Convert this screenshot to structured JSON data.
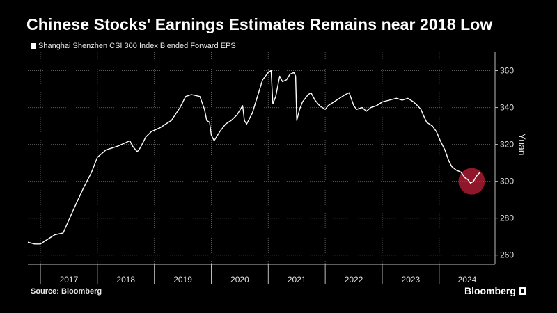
{
  "chart_data": {
    "type": "line",
    "title": "Chinese Stocks' Earnings Estimates Remains near 2018 Low",
    "series": [
      {
        "name": "Shanghai Shenzhen CSI 300 Index Blended Forward EPS",
        "points": [
          [
            2016.78,
            267
          ],
          [
            2016.9,
            266
          ],
          [
            2017.0,
            266
          ],
          [
            2017.1,
            268
          ],
          [
            2017.25,
            271
          ],
          [
            2017.4,
            272
          ],
          [
            2017.5,
            279
          ],
          [
            2017.6,
            286
          ],
          [
            2017.75,
            296
          ],
          [
            2017.9,
            305
          ],
          [
            2018.0,
            313
          ],
          [
            2018.15,
            317
          ],
          [
            2018.35,
            319
          ],
          [
            2018.5,
            321
          ],
          [
            2018.57,
            322
          ],
          [
            2018.62,
            319
          ],
          [
            2018.7,
            316
          ],
          [
            2018.75,
            318
          ],
          [
            2018.85,
            324
          ],
          [
            2018.95,
            327
          ],
          [
            2019.1,
            329
          ],
          [
            2019.2,
            331
          ],
          [
            2019.3,
            333
          ],
          [
            2019.45,
            340
          ],
          [
            2019.55,
            346
          ],
          [
            2019.65,
            347
          ],
          [
            2019.8,
            346
          ],
          [
            2019.88,
            339
          ],
          [
            2019.92,
            333
          ],
          [
            2019.97,
            332
          ],
          [
            2020.0,
            325
          ],
          [
            2020.05,
            322
          ],
          [
            2020.15,
            327
          ],
          [
            2020.25,
            331
          ],
          [
            2020.35,
            333
          ],
          [
            2020.45,
            336
          ],
          [
            2020.55,
            341
          ],
          [
            2020.58,
            333
          ],
          [
            2020.62,
            331
          ],
          [
            2020.72,
            337
          ],
          [
            2020.82,
            347
          ],
          [
            2020.9,
            355
          ],
          [
            2021.0,
            359
          ],
          [
            2021.05,
            360
          ],
          [
            2021.08,
            342
          ],
          [
            2021.13,
            346
          ],
          [
            2021.2,
            357
          ],
          [
            2021.25,
            354
          ],
          [
            2021.32,
            355
          ],
          [
            2021.38,
            358
          ],
          [
            2021.45,
            359
          ],
          [
            2021.48,
            357
          ],
          [
            2021.5,
            333
          ],
          [
            2021.55,
            339
          ],
          [
            2021.6,
            343
          ],
          [
            2021.7,
            347
          ],
          [
            2021.75,
            348
          ],
          [
            2021.82,
            344
          ],
          [
            2021.9,
            341
          ],
          [
            2022.0,
            339
          ],
          [
            2022.05,
            341
          ],
          [
            2022.15,
            343
          ],
          [
            2022.25,
            345
          ],
          [
            2022.35,
            347
          ],
          [
            2022.42,
            348
          ],
          [
            2022.5,
            341
          ],
          [
            2022.55,
            339
          ],
          [
            2022.65,
            340
          ],
          [
            2022.72,
            338
          ],
          [
            2022.8,
            340
          ],
          [
            2022.9,
            341
          ],
          [
            2023.0,
            343
          ],
          [
            2023.12,
            344
          ],
          [
            2023.25,
            345
          ],
          [
            2023.35,
            344
          ],
          [
            2023.45,
            345
          ],
          [
            2023.55,
            343
          ],
          [
            2023.62,
            341
          ],
          [
            2023.68,
            339
          ],
          [
            2023.72,
            336
          ],
          [
            2023.78,
            332
          ],
          [
            2023.88,
            330
          ],
          [
            2023.95,
            327
          ],
          [
            2024.02,
            322
          ],
          [
            2024.1,
            317
          ],
          [
            2024.17,
            311
          ],
          [
            2024.22,
            308
          ],
          [
            2024.3,
            306
          ],
          [
            2024.38,
            305
          ],
          [
            2024.45,
            302
          ],
          [
            2024.5,
            301
          ],
          [
            2024.55,
            299
          ],
          [
            2024.6,
            300
          ],
          [
            2024.66,
            303
          ],
          [
            2024.72,
            305
          ]
        ]
      }
    ],
    "ylabel": "Yuan",
    "x_ticks": [
      "2017",
      "2018",
      "2019",
      "2020",
      "2021",
      "2022",
      "2023",
      "2024"
    ],
    "y_ticks": [
      260,
      280,
      300,
      320,
      340,
      360
    ],
    "ylim": [
      255,
      370
    ],
    "xlim": [
      2016.78,
      2024.98
    ],
    "grid": true,
    "y_axis_side": "right",
    "highlight": {
      "x": 2024.57,
      "y": 300
    },
    "colors": {
      "background": "#000000",
      "line": "#ffffff",
      "highlight": "#c81e3c"
    }
  },
  "legend_label": "Shanghai Shenzhen CSI 300 Index Blended Forward EPS",
  "source_label": "Source: Bloomberg",
  "brand_label": "Bloomberg"
}
